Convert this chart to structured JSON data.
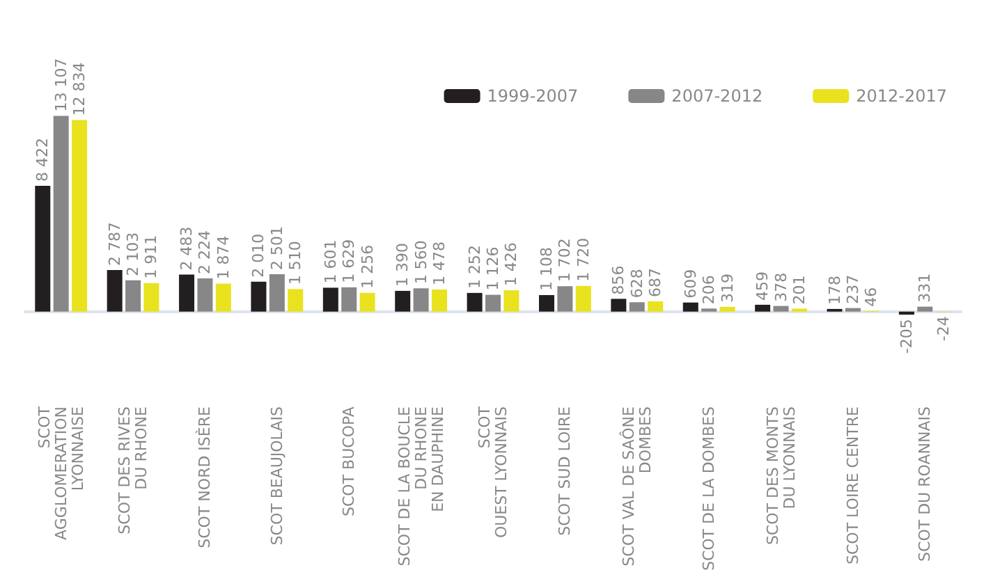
{
  "chart_data": {
    "type": "bar",
    "categories": [
      "SCOT\nAGGLOMERATION\nLYONNAISE",
      "SCOT DES RIVES\nDU RHONE",
      "SCOT NORD ISÈRE",
      "SCOT BEAUJOLAIS",
      "SCOT BUCOPA",
      "SCOT DE LA BOUCLE\nDU RHONE\nEN DAUPHINE",
      "SCOT\nOUEST LYONNAIS",
      "SCOT SUD LOIRE",
      "SCOT VAL DE SAÔNE\nDOMBES",
      "SCOT DE LA DOMBES",
      "SCOT DES MONTS\nDU LYONNAIS",
      "SCOT LOIRE CENTRE",
      "SCOT DU ROANNAIS"
    ],
    "series": [
      {
        "name": "1999-2007",
        "color": "#231f20",
        "values": [
          8422,
          2787,
          2483,
          2010,
          1601,
          1390,
          1252,
          1108,
          856,
          609,
          459,
          178,
          -205
        ],
        "value_labels": [
          "8 422",
          "2 787",
          "2 483",
          "2 010",
          "1 601",
          "1 390",
          "1 252",
          "1 108",
          "856",
          "609",
          "459",
          "178",
          "-205"
        ]
      },
      {
        "name": "2007-2012",
        "color": "#878787",
        "values": [
          13107,
          2103,
          2224,
          2501,
          1629,
          1560,
          1126,
          1702,
          628,
          206,
          378,
          237,
          331
        ],
        "value_labels": [
          "13 107",
          "2 103",
          "2 224",
          "2 501",
          "1 629",
          "1 560",
          "1 126",
          "1 702",
          "628",
          "206",
          "378",
          "237",
          "331"
        ]
      },
      {
        "name": "2012-2017",
        "color": "#e9e21f",
        "values": [
          12834,
          1911,
          1874,
          1510,
          1256,
          1478,
          1426,
          1720,
          687,
          319,
          201,
          46,
          -24
        ],
        "value_labels": [
          "12 834",
          "1 911",
          "1 874",
          "1 510",
          "1 256",
          "1 478",
          "1 426",
          "1 720",
          "687",
          "319",
          "201",
          "46",
          "-24"
        ]
      }
    ],
    "legend": "top right",
    "grid": false,
    "tick_labels": "x"
  }
}
